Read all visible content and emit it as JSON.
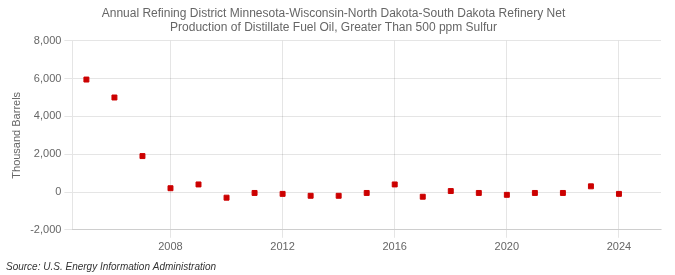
{
  "chart_data": {
    "type": "scatter",
    "title": "Annual Refining District Minnesota-Wisconsin-North Dakota-South Dakota Refinery Net\nProduction of Distillate Fuel Oil, Greater Than 500 ppm Sulfur",
    "ylabel": "Thousand Barrels",
    "annotations": [
      "Source: U.S. Energy Information Administration"
    ],
    "x": [
      2005,
      2006,
      2007,
      2008,
      2009,
      2010,
      2011,
      2012,
      2013,
      2014,
      2015,
      2016,
      2017,
      2018,
      2019,
      2020,
      2021,
      2022,
      2023,
      2024
    ],
    "values": [
      5950,
      5000,
      1900,
      200,
      400,
      -300,
      -50,
      -100,
      -200,
      -200,
      -50,
      400,
      -250,
      50,
      -50,
      -150,
      -50,
      -50,
      300,
      -100
    ],
    "color": "#cc0000",
    "marker": "square",
    "xlim": [
      2004.5,
      2025.5
    ],
    "xticks": [
      2008,
      2012,
      2016,
      2020,
      2024
    ],
    "ylim": [
      -2000,
      8000
    ],
    "yticks": [
      {
        "value": -2000,
        "label": "-2,000"
      },
      0,
      {
        "value": 2000,
        "label": "2,000"
      },
      {
        "value": 4000,
        "label": "4,000"
      },
      {
        "value": 6000,
        "label": "6,000"
      },
      {
        "value": 8000,
        "label": "8,000"
      }
    ],
    "grid": true
  }
}
